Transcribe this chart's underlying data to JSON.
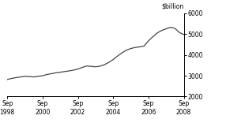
{
  "title": "",
  "ylabel": "$billion",
  "xlim": [
    0,
    40
  ],
  "ylim": [
    2000,
    6000
  ],
  "yticks": [
    2000,
    3000,
    4000,
    5000,
    6000
  ],
  "xtick_positions": [
    0,
    8,
    16,
    24,
    32,
    40
  ],
  "xtick_labels": [
    "Sep\n1998",
    "Sep\n2000",
    "Sep\n2002",
    "Sep\n2004",
    "Sep\n2006",
    "Sep\n2008"
  ],
  "line_color": "#444444",
  "line_width": 0.9,
  "x": [
    0,
    1,
    2,
    3,
    4,
    5,
    6,
    7,
    8,
    9,
    10,
    11,
    12,
    13,
    14,
    15,
    16,
    17,
    18,
    19,
    20,
    21,
    22,
    23,
    24,
    25,
    26,
    27,
    28,
    29,
    30,
    31,
    32,
    33,
    34,
    35,
    36,
    37,
    38,
    39,
    40
  ],
  "y": [
    2820,
    2870,
    2910,
    2940,
    2970,
    2960,
    2940,
    2970,
    3000,
    3060,
    3100,
    3140,
    3170,
    3200,
    3230,
    3270,
    3320,
    3400,
    3470,
    3450,
    3430,
    3460,
    3530,
    3640,
    3780,
    3950,
    4100,
    4230,
    4310,
    4360,
    4390,
    4430,
    4680,
    4880,
    5060,
    5180,
    5260,
    5330,
    5280,
    5080,
    4980
  ]
}
